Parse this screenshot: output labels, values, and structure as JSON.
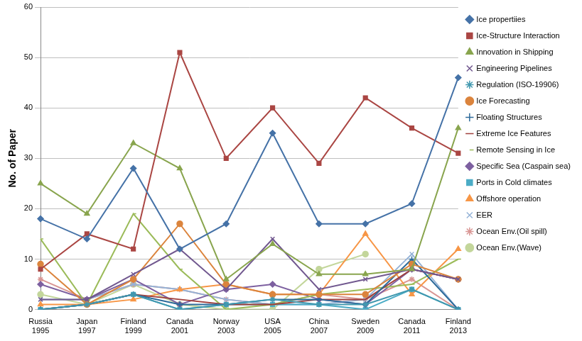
{
  "chart_data": {
    "type": "line",
    "y_label": "No. of Paper",
    "categories": [
      [
        "Russia",
        "1995"
      ],
      [
        "Japan",
        "1997"
      ],
      [
        "Finland",
        "1999"
      ],
      [
        "Canada",
        "2001"
      ],
      [
        "Norway",
        "2003"
      ],
      [
        "USA",
        "2005"
      ],
      [
        "China",
        "2007"
      ],
      [
        "Sweden",
        "2009"
      ],
      [
        "Canada",
        "2011"
      ],
      [
        "Finland",
        "2013"
      ]
    ],
    "ylim": [
      0,
      60
    ],
    "yticks": [
      0,
      10,
      20,
      30,
      40,
      50,
      60
    ],
    "grid": true,
    "legend": "right",
    "series": [
      {
        "name": "Ice propertiies",
        "color": "#4572A7",
        "marker": "diamond",
        "values": [
          18,
          14,
          28,
          12,
          17,
          35,
          17,
          17,
          21,
          46
        ]
      },
      {
        "name": "Ice-Structure Interaction",
        "color": "#AA4643",
        "marker": "square",
        "values": [
          8,
          15,
          12,
          51,
          30,
          40,
          29,
          42,
          36,
          31
        ]
      },
      {
        "name": "Innovation in Shipping",
        "color": "#89A54E",
        "marker": "triangle",
        "values": [
          25,
          19,
          33,
          28,
          6,
          13,
          7,
          7,
          8,
          36
        ]
      },
      {
        "name": "Engineering Pipelines",
        "color": "#71588F",
        "marker": "x",
        "values": [
          2,
          2,
          7,
          12,
          4,
          14,
          4,
          6,
          8,
          6
        ]
      },
      {
        "name": "Regulation (ISO-19906)",
        "color": "#4198AF",
        "marker": "star",
        "values": [
          0,
          1,
          3,
          0,
          1,
          2,
          1,
          1,
          4,
          0
        ]
      },
      {
        "name": "Ice Forecasting",
        "color": "#DB843D",
        "marker": "circle",
        "values": [
          9,
          1,
          6,
          17,
          5,
          3,
          3,
          3,
          9,
          6
        ]
      },
      {
        "name": "Floating Structures",
        "color": "#2C6A9A",
        "marker": "plus",
        "values": [
          0,
          1,
          3,
          1,
          1,
          2,
          2,
          1,
          10,
          0
        ]
      },
      {
        "name": "Extreme Ice Features",
        "color": "#A0403D",
        "marker": "none",
        "values": [
          0,
          1,
          3,
          2,
          1,
          1,
          2,
          2,
          8,
          6
        ]
      },
      {
        "name": "Remote Sensing in Ice",
        "color": "#9BBB59",
        "marker": "dash",
        "values": [
          14,
          1,
          19,
          8,
          0,
          1,
          3,
          4,
          5,
          10
        ]
      },
      {
        "name": "Specific Sea (Caspain sea)",
        "color": "#7D60A0",
        "marker": "diamond",
        "values": [
          5,
          2,
          6,
          1,
          4,
          5,
          2,
          1,
          8,
          6
        ]
      },
      {
        "name": "Ports in Cold climates",
        "color": "#4BACC6",
        "marker": "square",
        "values": [
          0,
          1,
          3,
          0,
          1,
          1,
          1,
          0,
          4,
          0
        ]
      },
      {
        "name": "Offshore operation",
        "color": "#F79646",
        "marker": "triangle",
        "values": [
          1,
          1,
          2,
          4,
          5,
          3,
          3,
          15,
          3,
          12
        ]
      },
      {
        "name": "EER",
        "color": "#95B3D7",
        "marker": "x",
        "values": [
          2,
          2,
          5,
          4,
          2,
          1,
          1,
          2,
          11,
          0
        ]
      },
      {
        "name": "Ocean Env.(Oil spill)",
        "color": "#D99694",
        "marker": "star",
        "values": [
          6,
          2,
          5,
          4,
          2,
          1,
          3,
          2,
          6,
          0
        ]
      },
      {
        "name": "Ocean Env.(Wave)",
        "color": "#C3D69B",
        "marker": "circle",
        "values": [
          3,
          1,
          5,
          1,
          0,
          0,
          8,
          11,
          null,
          null
        ]
      }
    ]
  }
}
